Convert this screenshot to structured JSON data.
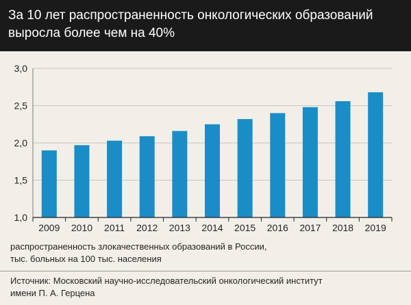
{
  "header": {
    "title_line1": "За 10 лет распространенность онкологических образований",
    "title_line2": "выросла более чем на 40%"
  },
  "caption": {
    "line1": "распространенность злокачественных образований в России,",
    "line2": "тыс. больных на 100 тыс. населения"
  },
  "source": {
    "line1": "Источник: Московский научно-исследовательский онкологический институт",
    "line2": "имени П. А. Герцена"
  },
  "chart_data": {
    "type": "bar",
    "title": "За 10 лет распространенность онкологических образований выросла более чем на 40%",
    "categories": [
      "2009",
      "2010",
      "2011",
      "2012",
      "2013",
      "2014",
      "2015",
      "2016",
      "2017",
      "2018",
      "2019"
    ],
    "values": [
      1.9,
      1.97,
      2.03,
      2.09,
      2.16,
      2.25,
      2.32,
      2.4,
      2.48,
      2.56,
      2.68
    ],
    "ylim": [
      1.0,
      3.0
    ],
    "yticks": [
      1.0,
      1.5,
      2.0,
      2.5,
      3.0
    ],
    "ytick_labels": [
      "1,0",
      "1,5",
      "2,0",
      "2,5",
      "3,0"
    ],
    "xlabel": "",
    "ylabel": "",
    "grid": true,
    "bar_color": "#1a8dc6",
    "grid_color": "#c9c6bd"
  }
}
